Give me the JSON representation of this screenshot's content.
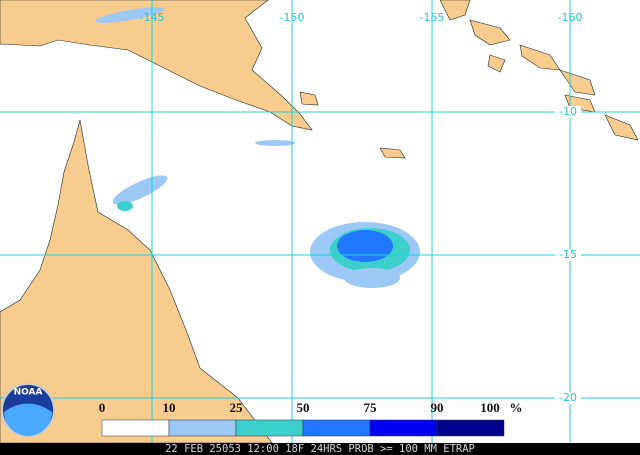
{
  "map": {
    "lon_labels": [
      "-145",
      "-150",
      "-155",
      "-160"
    ],
    "lat_labels": [
      "-10",
      "-15",
      "-20"
    ]
  },
  "legend": {
    "labels": [
      "0",
      "10",
      "25",
      "50",
      "75",
      "90",
      "100"
    ],
    "unit": "%",
    "colors": [
      "#ffffff",
      "#9cc8f6",
      "#3ccfcc",
      "#1f78ff",
      "#0000f0",
      "#00008c"
    ]
  },
  "logo": {
    "text": "NOAA"
  },
  "footer": {
    "text": "22 FEB 25053 12:00 18F 24HRS PROB >= 100 MM ETRAP"
  }
}
